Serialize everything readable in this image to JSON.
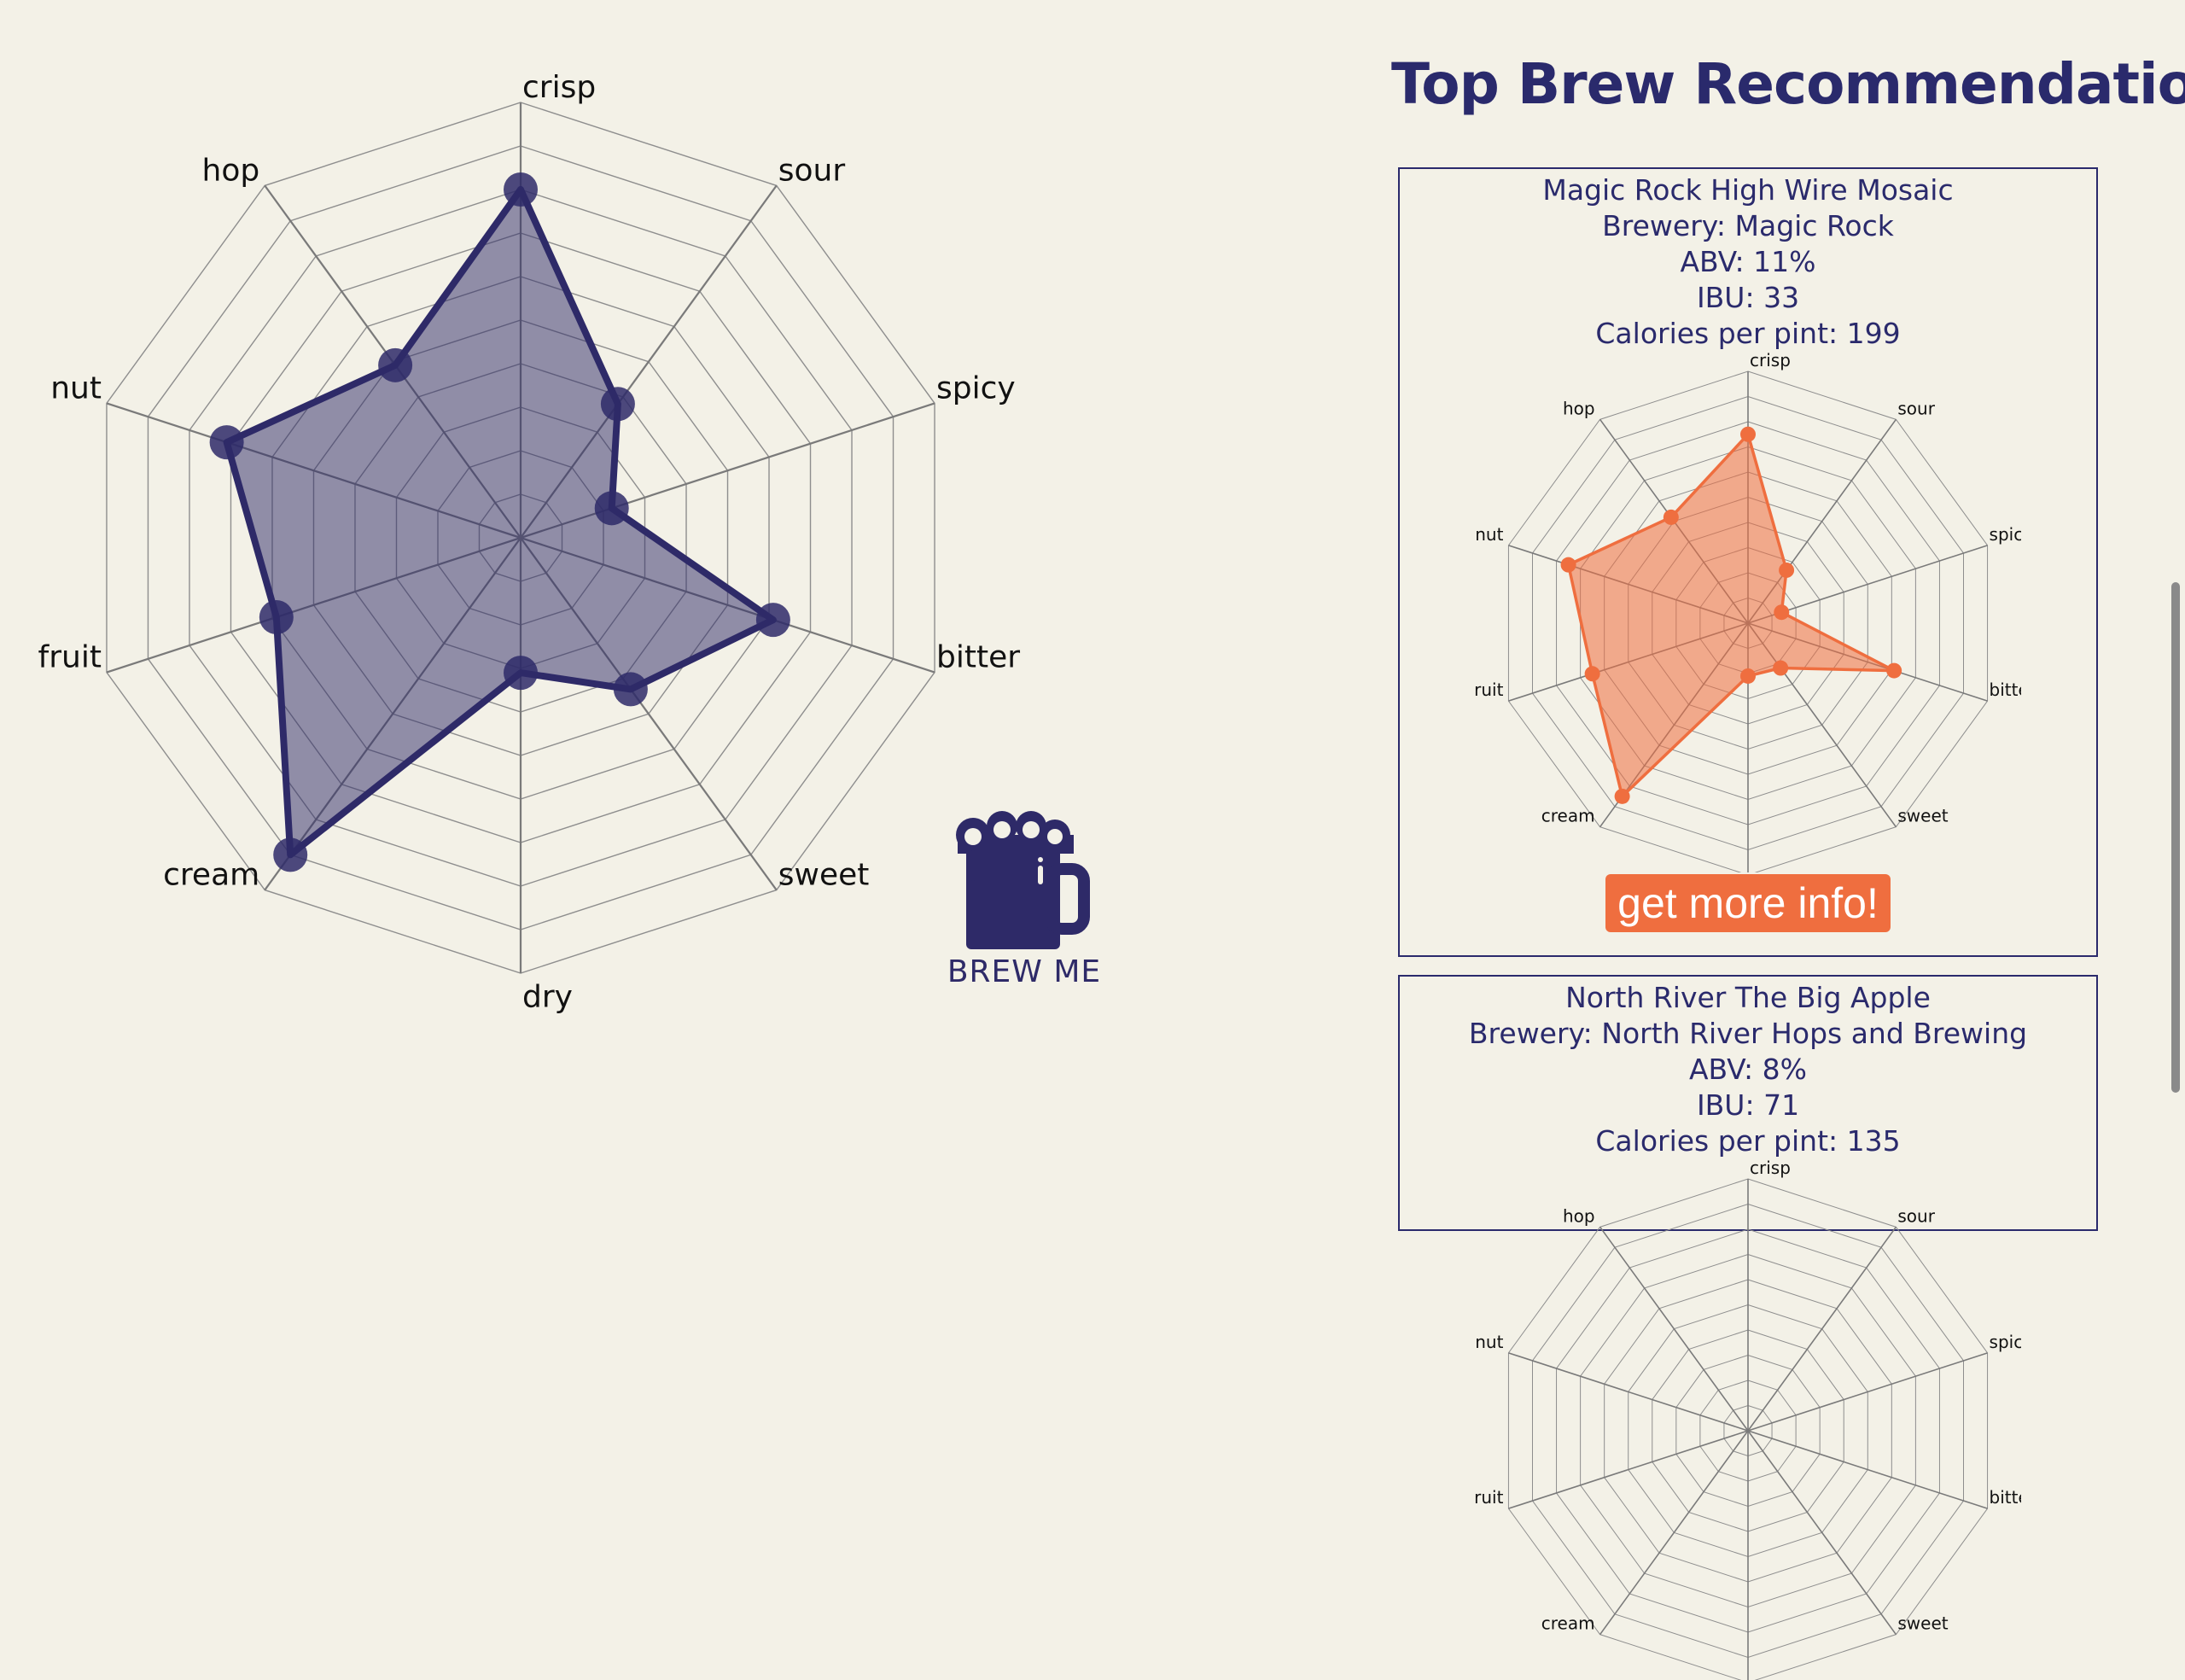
{
  "main_radar": {
    "axes": [
      "crisp",
      "sour",
      "spicy",
      "bitter",
      "sweet",
      "dry",
      "cream",
      "fruit",
      "nut",
      "hop"
    ],
    "values": [
      8,
      3.8,
      2.2,
      6.1,
      4.3,
      3.1,
      9.0,
      5.9,
      7.1,
      4.9
    ],
    "max": 10,
    "fill_color": "#2e2a68",
    "fill_opacity": 0.5,
    "stroke_color": "#2e2a68"
  },
  "brew_button": {
    "label": "BREW ME",
    "icon": "beer-mug-icon",
    "color": "#2e2a68"
  },
  "recommendations": {
    "title": "Top Brew Recommendations",
    "items": [
      {
        "name": "Magic Rock High Wire Mosaic",
        "brewery": "Brewery: Magic Rock",
        "abv": "ABV: 11%",
        "ibu": "IBU: 33",
        "calories": "Calories per pint: 199",
        "button_label": "get more info!",
        "radar": {
          "values": [
            7.5,
            2.6,
            1.4,
            6.1,
            2.2,
            2.1,
            8.5,
            6.5,
            7.5,
            5.2
          ],
          "fill_color": "#ef6e3f",
          "fill_opacity": 0.55,
          "stroke_color": "#ef6e3f"
        }
      },
      {
        "name": "North River The Big Apple",
        "brewery": "Brewery: North River Hops and Brewing",
        "abv": "ABV: 8%",
        "ibu": "IBU: 71",
        "calories": "Calories per pint: 135"
      }
    ]
  },
  "colors": {
    "background": "#f3f1e7",
    "primary": "#2a2a6c",
    "accent": "#ef6e3f"
  }
}
